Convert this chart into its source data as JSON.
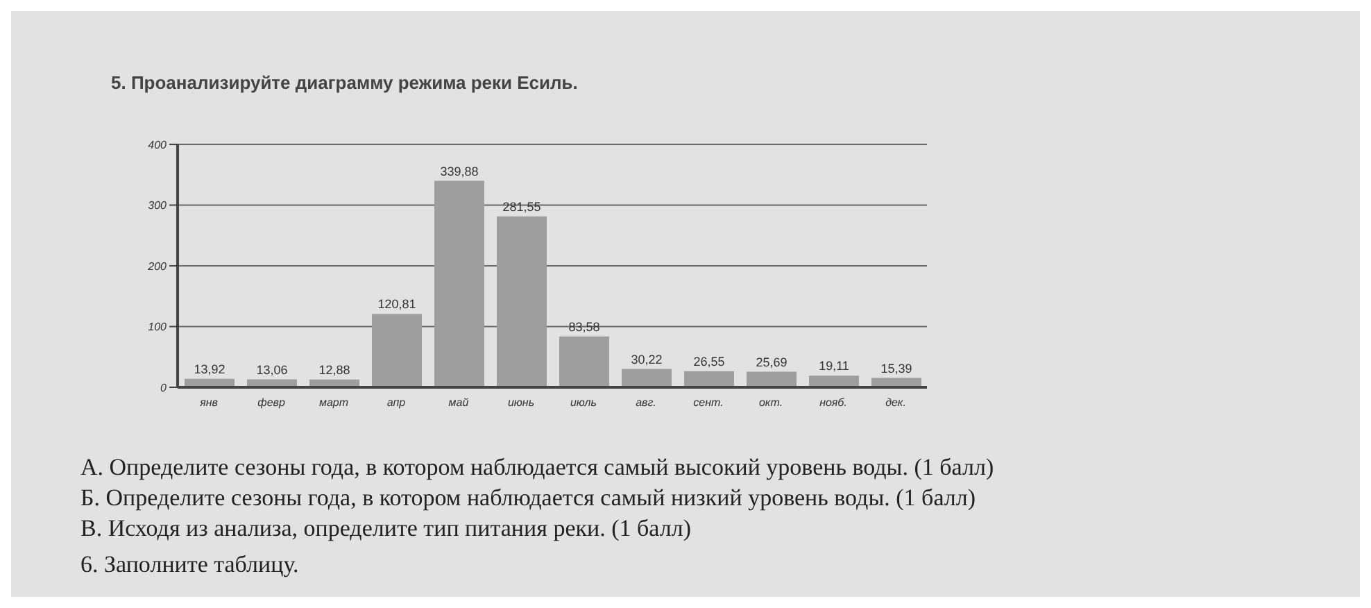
{
  "chart_data": {
    "type": "bar",
    "title": "5. Проанализируйте диаграмму режима реки Есиль.",
    "categories": [
      "янв",
      "февр",
      "март",
      "апр",
      "май",
      "июнь",
      "июль",
      "авг.",
      "сент.",
      "окт.",
      "нояб.",
      "дек."
    ],
    "values": [
      13.92,
      13.06,
      12.88,
      120.81,
      339.88,
      281.55,
      83.58,
      30.22,
      26.55,
      25.69,
      19.11,
      15.39
    ],
    "value_labels": [
      "13,92",
      "13,06",
      "12,88",
      "120,81",
      "339,88",
      "281,55",
      "83,58",
      "30,22",
      "26,55",
      "25,69",
      "19,11",
      "15,39"
    ],
    "color": "#9e9e9e",
    "ylim": [
      0,
      400
    ],
    "yticks": [
      0,
      100,
      200,
      300,
      400
    ],
    "grid": "y",
    "annotations": [
      "А. Определите сезоны года, в котором наблюдается самый высокий уровень воды. (1 балл)",
      "Б. Определите сезоны года, в котором наблюдается самый низкий уровень воды. (1 балл)",
      "В. Исходя из анализа, определите тип питания реки. (1 балл)",
      "6. Заполните таблицу."
    ]
  }
}
